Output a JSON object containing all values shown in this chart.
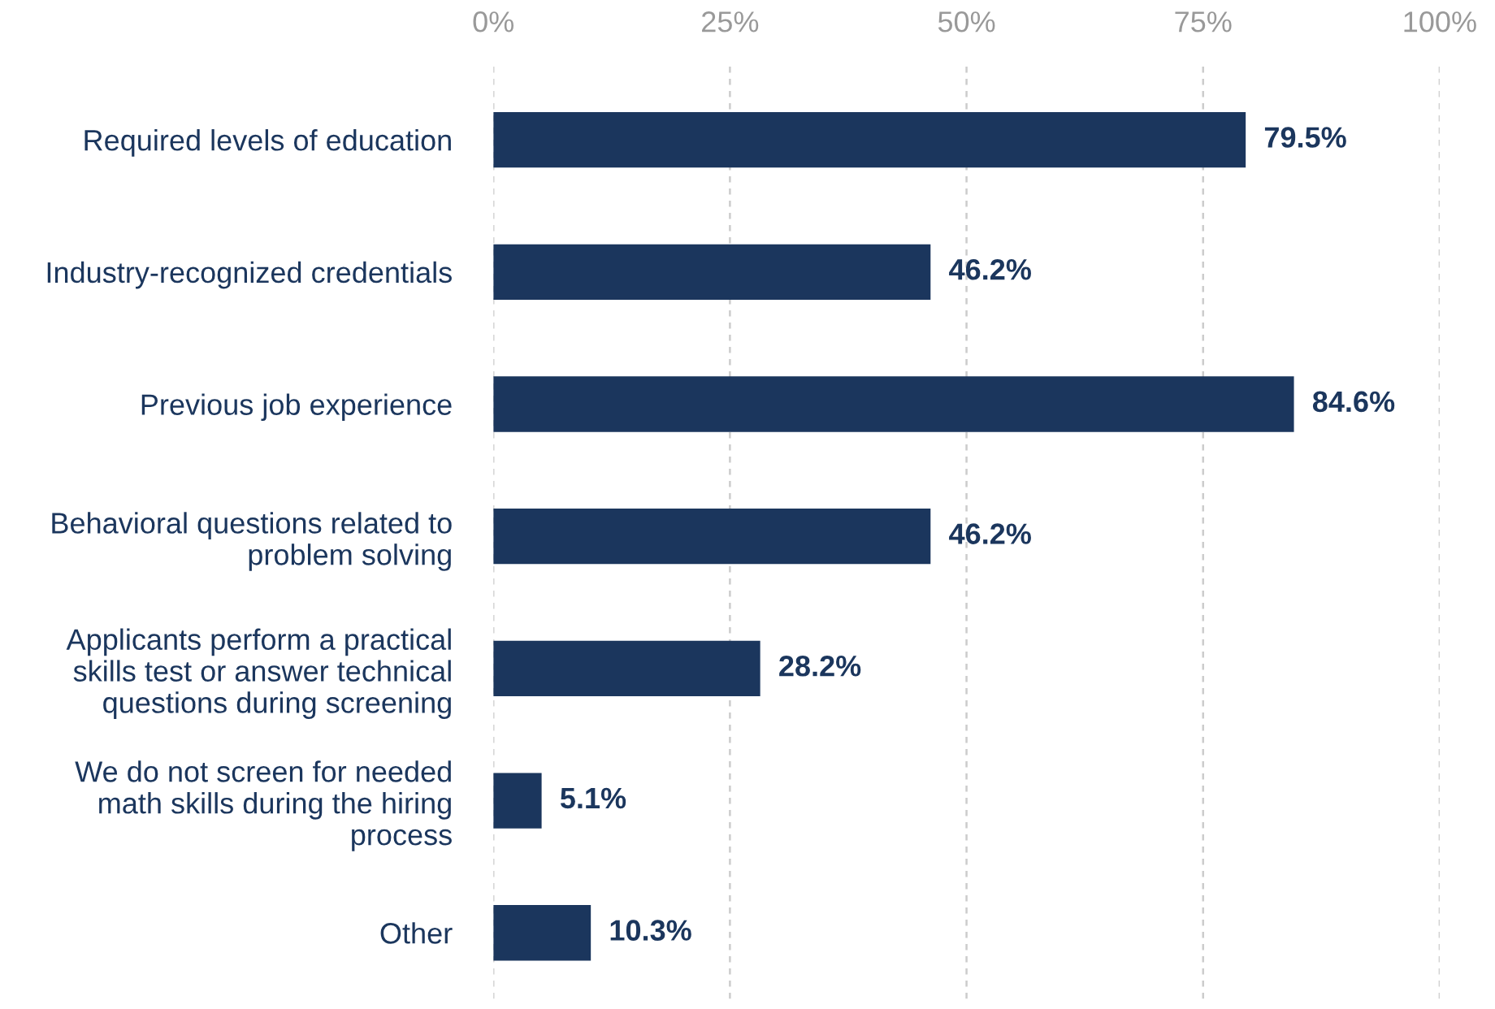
{
  "chart_data": {
    "type": "bar",
    "orientation": "horizontal",
    "categories": [
      "Required levels of education",
      "Industry-recognized credentials",
      "Previous job experience",
      "Behavioral questions related to\nproblem solving",
      "Applicants perform a practical\nskills test or answer technical\nquestions during screening",
      "We do not screen for needed\nmath skills during the hiring\nprocess",
      "Other"
    ],
    "values": [
      79.5,
      46.2,
      84.6,
      46.2,
      28.2,
      5.1,
      10.3
    ],
    "color": "#1b365d",
    "value_labels": [
      "79.5%",
      "46.2%",
      "84.6%",
      "46.2%",
      "28.2%",
      "5.1%",
      "10.3%"
    ],
    "xlim": [
      0,
      100
    ],
    "xticks": [
      {
        "value": 0,
        "label": "0%"
      },
      {
        "value": 25,
        "label": "25%"
      },
      {
        "value": 50,
        "label": "50%"
      },
      {
        "value": 75,
        "label": "75%"
      },
      {
        "value": 100,
        "label": "100%"
      }
    ],
    "grid": "x"
  }
}
